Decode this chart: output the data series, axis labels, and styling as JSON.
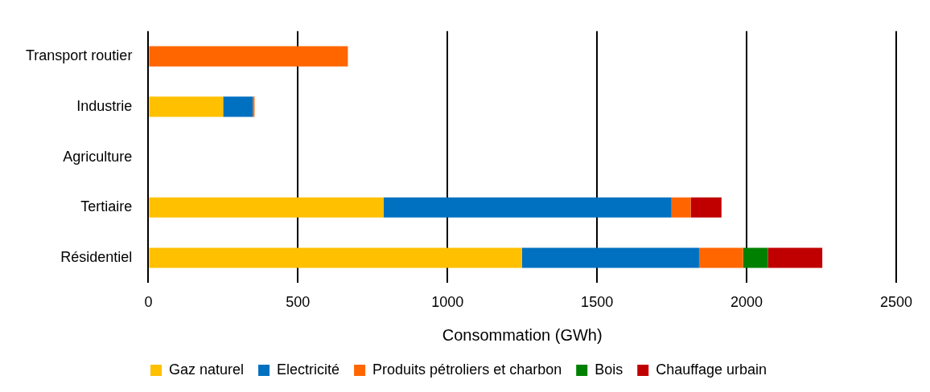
{
  "chart_data": {
    "type": "bar",
    "orientation": "horizontal",
    "stacked": true,
    "categories": [
      "Transport routier",
      "Industrie",
      "Agriculture",
      "Tertiaire",
      "Résidentiel"
    ],
    "series": [
      {
        "name": "Gaz naturel",
        "color": "#ffc000",
        "values": [
          0,
          250,
          0,
          786,
          1249
        ]
      },
      {
        "name": "Electricité",
        "color": "#0070c0",
        "values": [
          0,
          99,
          0,
          963,
          592
        ]
      },
      {
        "name": "Produits pétroliers et charbon",
        "color": "#ff6600",
        "values": [
          667,
          6,
          null,
          64,
          147
        ]
      },
      {
        "name": "Bois",
        "color": "#008000",
        "values": [
          0,
          0,
          0,
          0,
          83
        ]
      },
      {
        "name": "Chauffage urbain",
        "color": "#c00000",
        "values": [
          0,
          0,
          0,
          103,
          182
        ]
      }
    ],
    "xlabel": "Consommation (GWh)",
    "xlim": [
      0,
      2500
    ],
    "xticks": [
      0,
      500,
      1000,
      1500,
      2000,
      2500
    ],
    "grid": "x",
    "legend": "bottom"
  }
}
